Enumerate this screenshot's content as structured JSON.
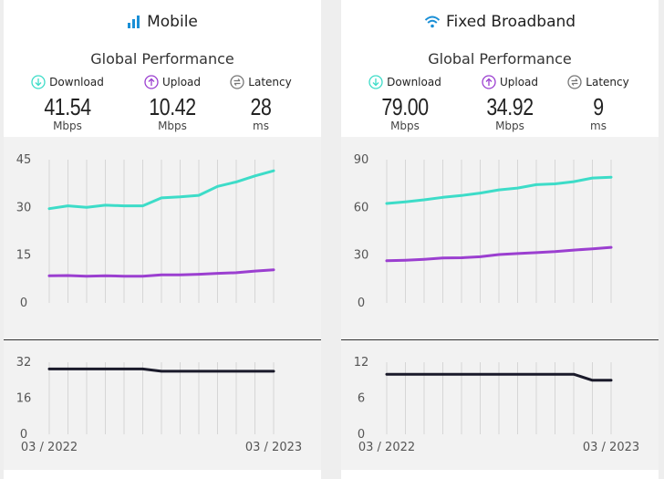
{
  "colors": {
    "download": "#3ddcc8",
    "upload": "#9b3fd0",
    "latency": "#1a1a2a",
    "grid": "#d6d6d6",
    "axis_text": "#555555",
    "icon_blue": "#1a8fd6"
  },
  "panels": [
    {
      "title": "Mobile",
      "icon": "signal-bars-icon",
      "subtitle": "Global Performance",
      "metrics": [
        {
          "label": "Download",
          "value": "41.54",
          "unit": "Mbps",
          "icon": "arrow-down-circle-icon"
        },
        {
          "label": "Upload",
          "value": "10.42",
          "unit": "Mbps",
          "icon": "arrow-up-circle-icon"
        },
        {
          "label": "Latency",
          "value": "28",
          "unit": "ms",
          "icon": "latency-arrows-icon"
        }
      ]
    },
    {
      "title": "Fixed Broadband",
      "icon": "wifi-icon",
      "subtitle": "Global Performance",
      "metrics": [
        {
          "label": "Download",
          "value": "79.00",
          "unit": "Mbps",
          "icon": "arrow-down-circle-icon"
        },
        {
          "label": "Upload",
          "value": "34.92",
          "unit": "Mbps",
          "icon": "arrow-up-circle-icon"
        },
        {
          "label": "Latency",
          "value": "9",
          "unit": "ms",
          "icon": "latency-arrows-icon"
        }
      ]
    }
  ],
  "chart_data": [
    {
      "type": "line",
      "panel": "Mobile",
      "x": [
        "03 / 2022",
        "04 / 2022",
        "05 / 2022",
        "06 / 2022",
        "07 / 2022",
        "08 / 2022",
        "09 / 2022",
        "10 / 2022",
        "11 / 2022",
        "12 / 2022",
        "01 / 2023",
        "02 / 2023",
        "03 / 2023"
      ],
      "xtick_labels": [
        "03 / 2022",
        "03 / 2023"
      ],
      "yticks": [
        0,
        15,
        30,
        45
      ],
      "ylim": [
        0,
        45
      ],
      "grid": "vertical",
      "series": [
        {
          "name": "Download",
          "values": [
            29.6,
            30.5,
            30.0,
            30.7,
            30.5,
            30.5,
            33.0,
            33.3,
            33.8,
            36.6,
            38.0,
            39.9,
            41.5
          ]
        },
        {
          "name": "Upload",
          "values": [
            8.5,
            8.6,
            8.4,
            8.5,
            8.4,
            8.4,
            8.8,
            8.8,
            9.0,
            9.3,
            9.5,
            10.0,
            10.4
          ]
        }
      ]
    },
    {
      "type": "line",
      "panel": "Mobile",
      "x": [
        "03 / 2022",
        "04 / 2022",
        "05 / 2022",
        "06 / 2022",
        "07 / 2022",
        "08 / 2022",
        "09 / 2022",
        "10 / 2022",
        "11 / 2022",
        "12 / 2022",
        "01 / 2023",
        "02 / 2023",
        "03 / 2023"
      ],
      "xtick_labels": [
        "03 / 2022",
        "03 / 2023"
      ],
      "yticks": [
        0,
        16,
        32
      ],
      "ylim": [
        0,
        32
      ],
      "grid": "vertical",
      "series": [
        {
          "name": "Latency",
          "values": [
            29,
            29,
            29,
            29,
            29,
            29,
            28,
            28,
            28,
            28,
            28,
            28,
            28
          ]
        }
      ]
    },
    {
      "type": "line",
      "panel": "Fixed Broadband",
      "x": [
        "03 / 2022",
        "04 / 2022",
        "05 / 2022",
        "06 / 2022",
        "07 / 2022",
        "08 / 2022",
        "09 / 2022",
        "10 / 2022",
        "11 / 2022",
        "12 / 2022",
        "01 / 2023",
        "02 / 2023",
        "03 / 2023"
      ],
      "xtick_labels": [
        "03 / 2022",
        "03 / 2023"
      ],
      "yticks": [
        0,
        30,
        60,
        90
      ],
      "ylim": [
        0,
        90
      ],
      "grid": "vertical",
      "series": [
        {
          "name": "Download",
          "values": [
            62.5,
            63.5,
            64.8,
            66.3,
            67.5,
            69.0,
            71.0,
            72.2,
            74.3,
            74.8,
            76.2,
            78.5,
            79.0
          ]
        },
        {
          "name": "Upload",
          "values": [
            26.5,
            26.8,
            27.4,
            28.2,
            28.4,
            29.0,
            30.4,
            31.0,
            31.6,
            32.2,
            33.2,
            34.0,
            34.9
          ]
        }
      ]
    },
    {
      "type": "line",
      "panel": "Fixed Broadband",
      "x": [
        "03 / 2022",
        "04 / 2022",
        "05 / 2022",
        "06 / 2022",
        "07 / 2022",
        "08 / 2022",
        "09 / 2022",
        "10 / 2022",
        "11 / 2022",
        "12 / 2022",
        "01 / 2023",
        "02 / 2023",
        "03 / 2023"
      ],
      "xtick_labels": [
        "03 / 2022",
        "03 / 2023"
      ],
      "yticks": [
        0,
        6,
        12
      ],
      "ylim": [
        0,
        12
      ],
      "grid": "vertical",
      "series": [
        {
          "name": "Latency",
          "values": [
            10,
            10,
            10,
            10,
            10,
            10,
            10,
            10,
            10,
            10,
            10,
            9,
            9
          ]
        }
      ]
    }
  ]
}
